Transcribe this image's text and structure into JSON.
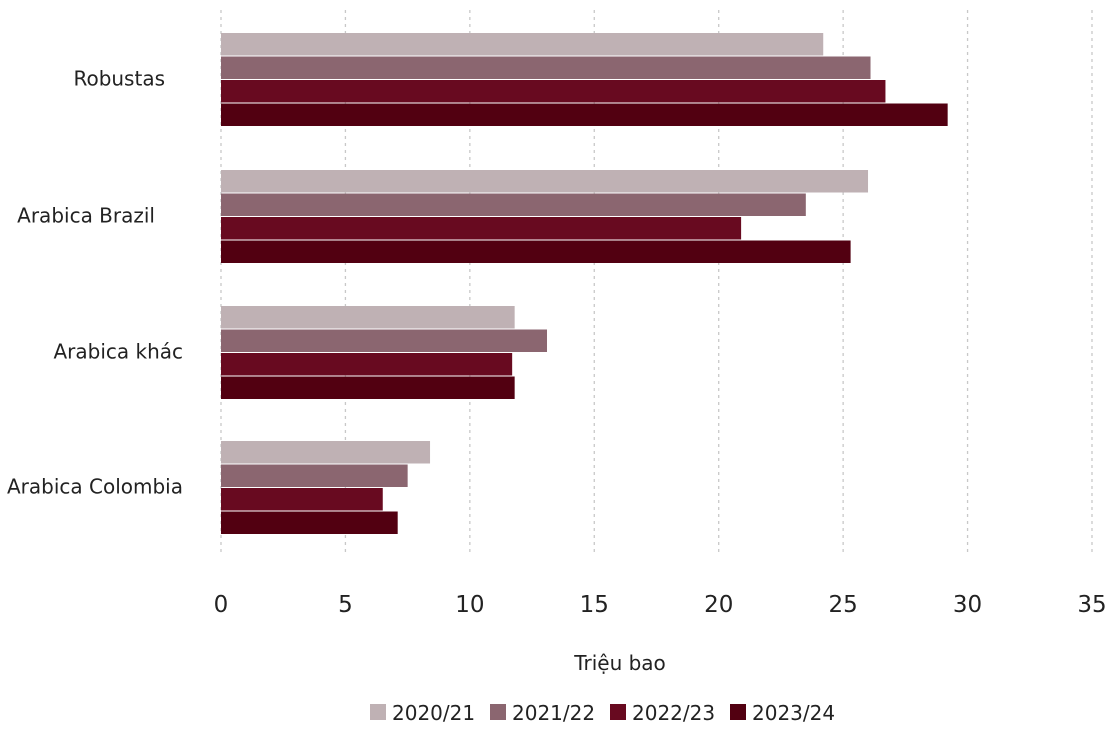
{
  "chart_data": {
    "type": "bar",
    "orientation": "horizontal",
    "categories": [
      "Robustas",
      "Arabica Brazil",
      "Arabica khác",
      "Arabica Colombia"
    ],
    "series": [
      {
        "name": "2020/21",
        "color": "#bfb1b4",
        "values": [
          24.2,
          26.0,
          11.8,
          8.4
        ]
      },
      {
        "name": "2021/22",
        "color": "#8b6670",
        "values": [
          26.1,
          23.5,
          13.1,
          7.5
        ]
      },
      {
        "name": "2022/23",
        "color": "#680a20",
        "values": [
          26.7,
          20.9,
          11.7,
          6.5
        ]
      },
      {
        "name": "2023/24",
        "color": "#520011",
        "values": [
          29.2,
          25.3,
          11.8,
          7.1
        ]
      }
    ],
    "xlabel": "Triệu bao",
    "xlim": [
      0,
      35
    ],
    "xticks": [
      0,
      5,
      10,
      15,
      20,
      25,
      30,
      35
    ],
    "grid": true,
    "legend_position": "bottom"
  }
}
